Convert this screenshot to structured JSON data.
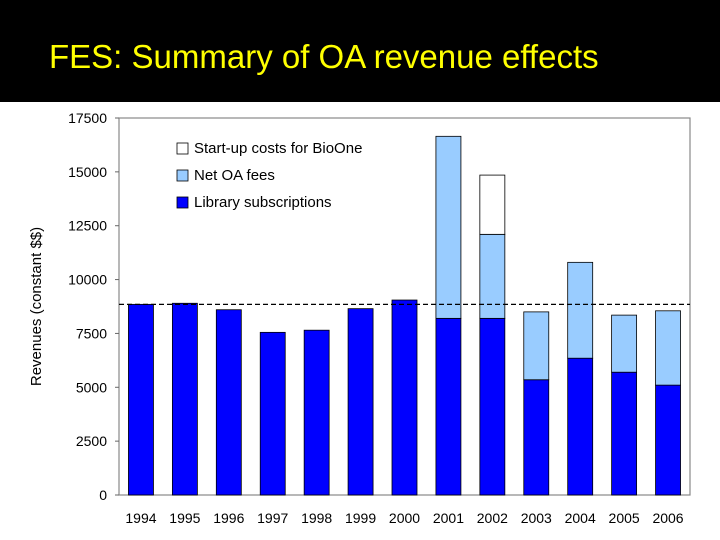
{
  "slide": {
    "title": "FES: Summary of OA revenue effects"
  },
  "colors": {
    "title_bar": "#000000",
    "title_text": "#ffff00",
    "library": "#0000ff",
    "netoa": "#99ccff",
    "startup": "#ffffff",
    "plot_border": "#888888",
    "reference_line": "#000000"
  },
  "chart_data": {
    "type": "bar",
    "stacked": true,
    "title": "FES: Summary of OA revenue effects",
    "xlabel": "",
    "ylabel": "Revenues (constant $$)",
    "ylim": [
      0,
      17500
    ],
    "yticks": [
      0,
      2500,
      5000,
      7500,
      10000,
      12500,
      15000,
      17500
    ],
    "categories": [
      "1994",
      "1995",
      "1996",
      "1997",
      "1998",
      "1999",
      "2000",
      "2001",
      "2002",
      "2003",
      "2004",
      "2005",
      "2006"
    ],
    "series": [
      {
        "name": "Library subscriptions",
        "key": "library",
        "values": [
          8850,
          8900,
          8600,
          7550,
          7650,
          8650,
          9050,
          8200,
          8200,
          5350,
          6350,
          5700,
          5100
        ]
      },
      {
        "name": "Net OA fees",
        "key": "netoa",
        "values": [
          0,
          0,
          0,
          0,
          0,
          0,
          0,
          8450,
          3900,
          3150,
          4450,
          2650,
          3450
        ]
      },
      {
        "name": "Start-up costs for BioOne",
        "key": "startup",
        "values": [
          0,
          0,
          0,
          0,
          0,
          0,
          0,
          0,
          2750,
          0,
          0,
          0,
          0
        ]
      }
    ],
    "legend": [
      "Start-up costs for BioOne",
      "Net OA fees",
      "Library subscriptions"
    ],
    "legend_position": "top-left",
    "reference_line": {
      "value": 8850,
      "style": "dashed"
    },
    "grid": false
  }
}
